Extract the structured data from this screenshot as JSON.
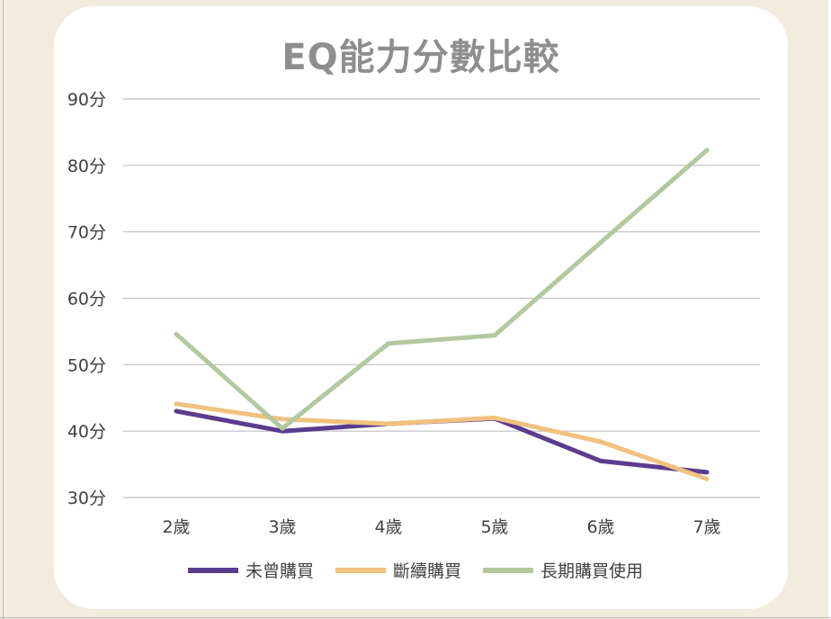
{
  "title": "EQ能力分數比較",
  "colors": {
    "background": "#F2ECDF",
    "card": "#FFFFFF",
    "title": "#8E8E8E",
    "grid": "#BFBFBF",
    "never": "#5B3C8C",
    "intermittent": "#F0C27E",
    "longterm": "#B3C89F"
  },
  "legend": [
    {
      "label": "未曾購買",
      "color": "#5B3C8C"
    },
    {
      "label": "斷續購買",
      "color": "#F0C27E"
    },
    {
      "label": "長期購買使用",
      "color": "#B3C89F"
    }
  ],
  "chart_data": {
    "type": "line",
    "title": "EQ能力分數比較",
    "xlabel": "",
    "ylabel": "",
    "categories": [
      "2歲",
      "3歲",
      "4歲",
      "5歲",
      "6歲",
      "7歲"
    ],
    "yticks": [
      "30分",
      "40分",
      "50分",
      "60分",
      "70分",
      "80分",
      "90分"
    ],
    "ylim": [
      30,
      90
    ],
    "grid": true,
    "legend_position": "bottom",
    "series": [
      {
        "name": "未曾購買",
        "color": "#5B3C8C",
        "values": [
          43.0,
          40.0,
          41.1,
          41.9,
          35.5,
          33.8
        ]
      },
      {
        "name": "斷續購買",
        "color": "#F0C27E",
        "values": [
          44.1,
          41.8,
          41.1,
          42.0,
          38.4,
          32.8
        ]
      },
      {
        "name": "長期購買使用",
        "color": "#B3C89F",
        "values": [
          54.6,
          40.4,
          53.2,
          54.4,
          68.4,
          82.3
        ]
      }
    ]
  }
}
